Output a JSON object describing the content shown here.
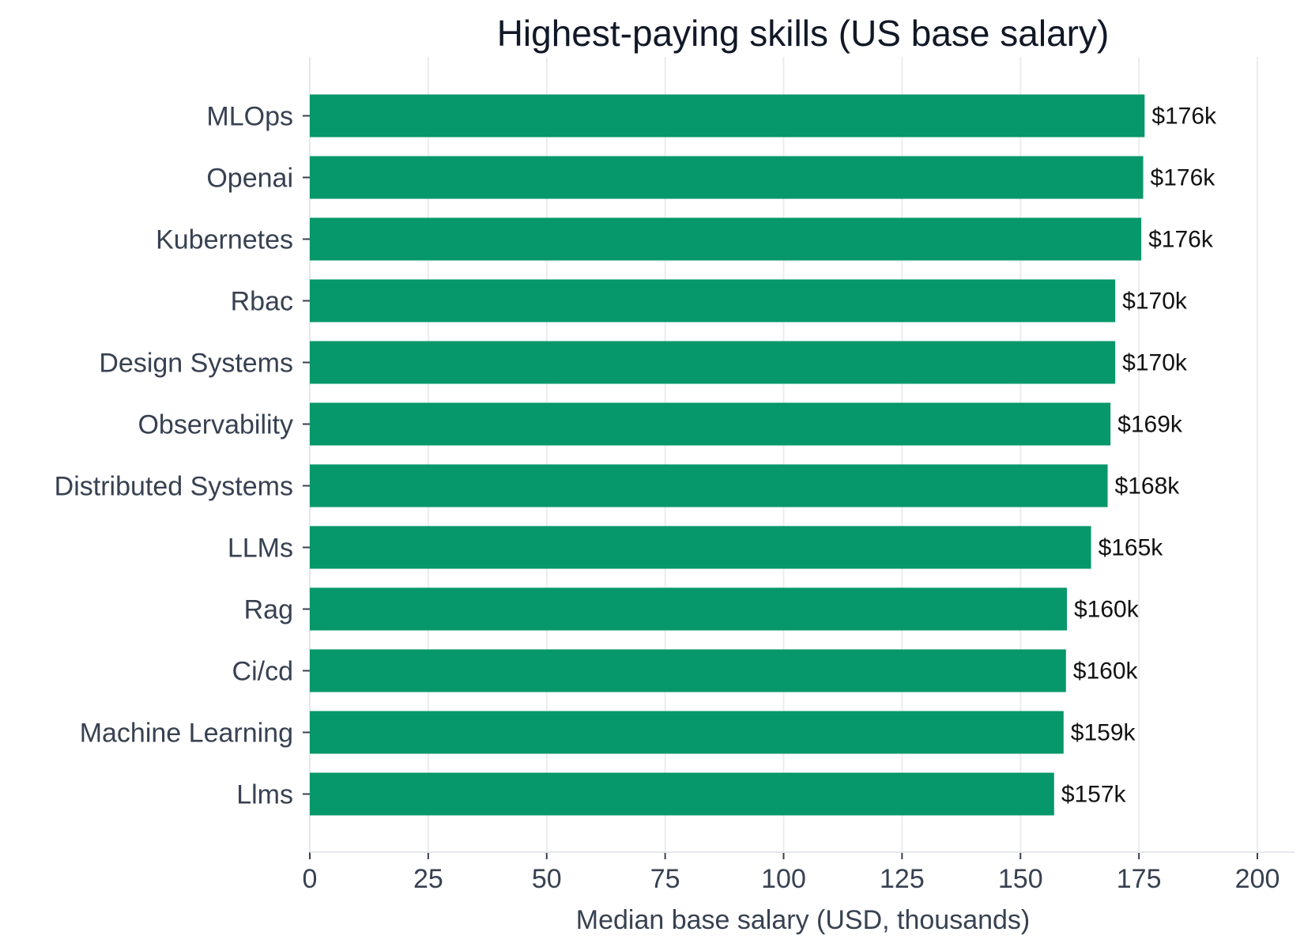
{
  "chart_data": {
    "type": "bar",
    "orientation": "horizontal",
    "title": "Highest-paying skills (US base salary)",
    "xlabel": "Median base salary (USD, thousands)",
    "ylabel": "",
    "xlim": [
      0,
      205
    ],
    "xticks": [
      0,
      25,
      50,
      75,
      100,
      125,
      150,
      175,
      200
    ],
    "grid": "vertical",
    "legend": "none",
    "bar_color": "#06976A",
    "categories": [
      "MLOps",
      "Openai",
      "Kubernetes",
      "Rbac",
      "Design Systems",
      "Observability",
      "Distributed Systems",
      "LLMs",
      "Rag",
      "Ci/cd",
      "Machine Learning",
      "Llms"
    ],
    "values": [
      176.2,
      175.9,
      175.5,
      170.0,
      170.0,
      169.0,
      168.4,
      164.9,
      159.8,
      159.6,
      159.1,
      157.1
    ],
    "data_labels": [
      "$176k",
      "$176k",
      "$176k",
      "$170k",
      "$170k",
      "$169k",
      "$168k",
      "$165k",
      "$160k",
      "$160k",
      "$159k",
      "$157k"
    ]
  }
}
